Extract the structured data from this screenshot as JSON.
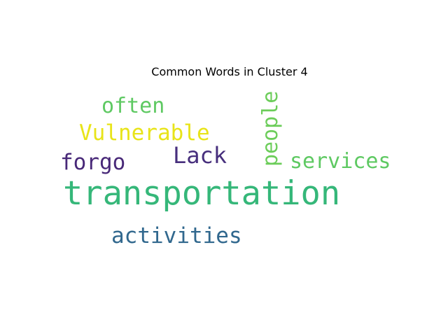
{
  "title": "Common Words in Cluster 4",
  "words": {
    "transportation": {
      "text": "transportation",
      "color": "#35b779"
    },
    "activities": {
      "text": "activities",
      "color": "#31688e"
    },
    "services": {
      "text": "services",
      "color": "#5ec962"
    },
    "forgo": {
      "text": "forgo",
      "color": "#482878"
    },
    "lack": {
      "text": "Lack",
      "color": "#472f7d"
    },
    "vulnerable": {
      "text": "Vulnerable",
      "color": "#e8e419"
    },
    "often": {
      "text": "often",
      "color": "#5ec962"
    },
    "people": {
      "text": "people",
      "color": "#6ccd5a"
    }
  }
}
